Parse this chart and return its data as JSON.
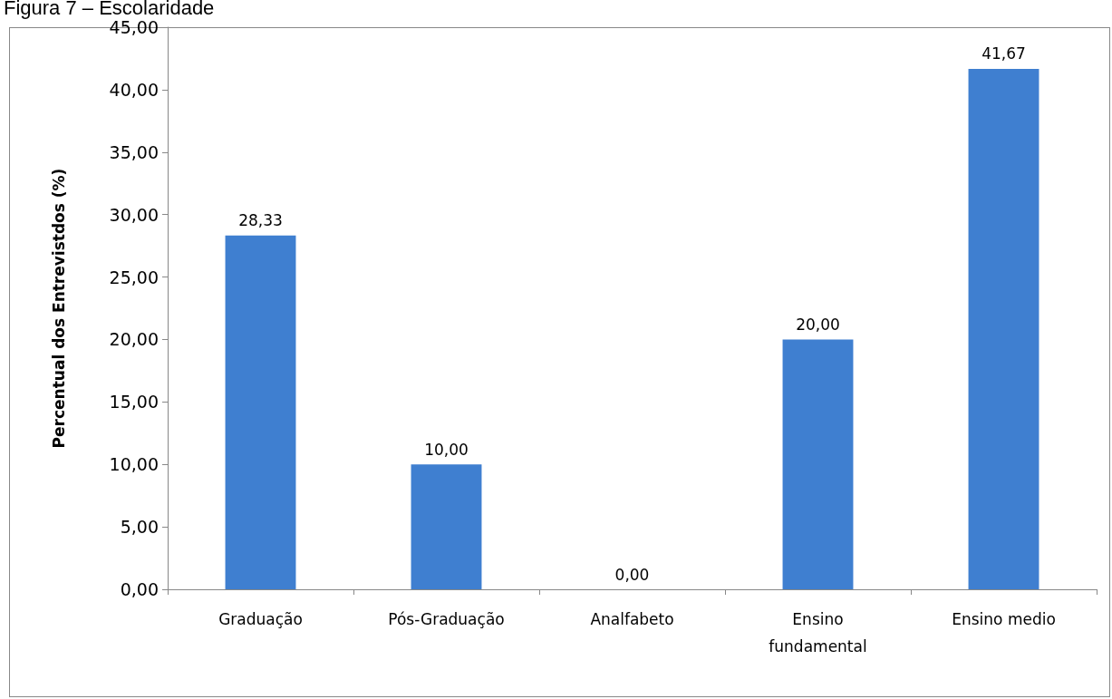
{
  "chart_data": {
    "type": "bar",
    "title": "Figura 7 – Escolaridade",
    "ylabel": "Percentual dos Entrevistdos (%)",
    "categories": [
      "Graduação",
      "Pós-Graduação",
      "Analfabeto",
      "Ensino\nfundamental",
      "Ensino medio"
    ],
    "values": [
      28.33,
      10,
      0,
      20,
      41.67
    ],
    "value_labels": [
      "28,33",
      "10,00",
      "0,00",
      "20,00",
      "41,67"
    ],
    "color": "#3f7fd0",
    "ylim": [
      0,
      45
    ],
    "yticks": [
      {
        "value": 0,
        "label": "0,00"
      },
      {
        "value": 5,
        "label": "5,00"
      },
      {
        "value": 10,
        "label": "10,00"
      },
      {
        "value": 15,
        "label": "15,00"
      },
      {
        "value": 20,
        "label": "20,00"
      },
      {
        "value": 25,
        "label": "25,00"
      },
      {
        "value": 30,
        "label": "30,00"
      },
      {
        "value": 35,
        "label": "35,00"
      },
      {
        "value": 40,
        "label": "40,00"
      },
      {
        "value": 45,
        "label": "45,00"
      }
    ],
    "grid": false
  }
}
